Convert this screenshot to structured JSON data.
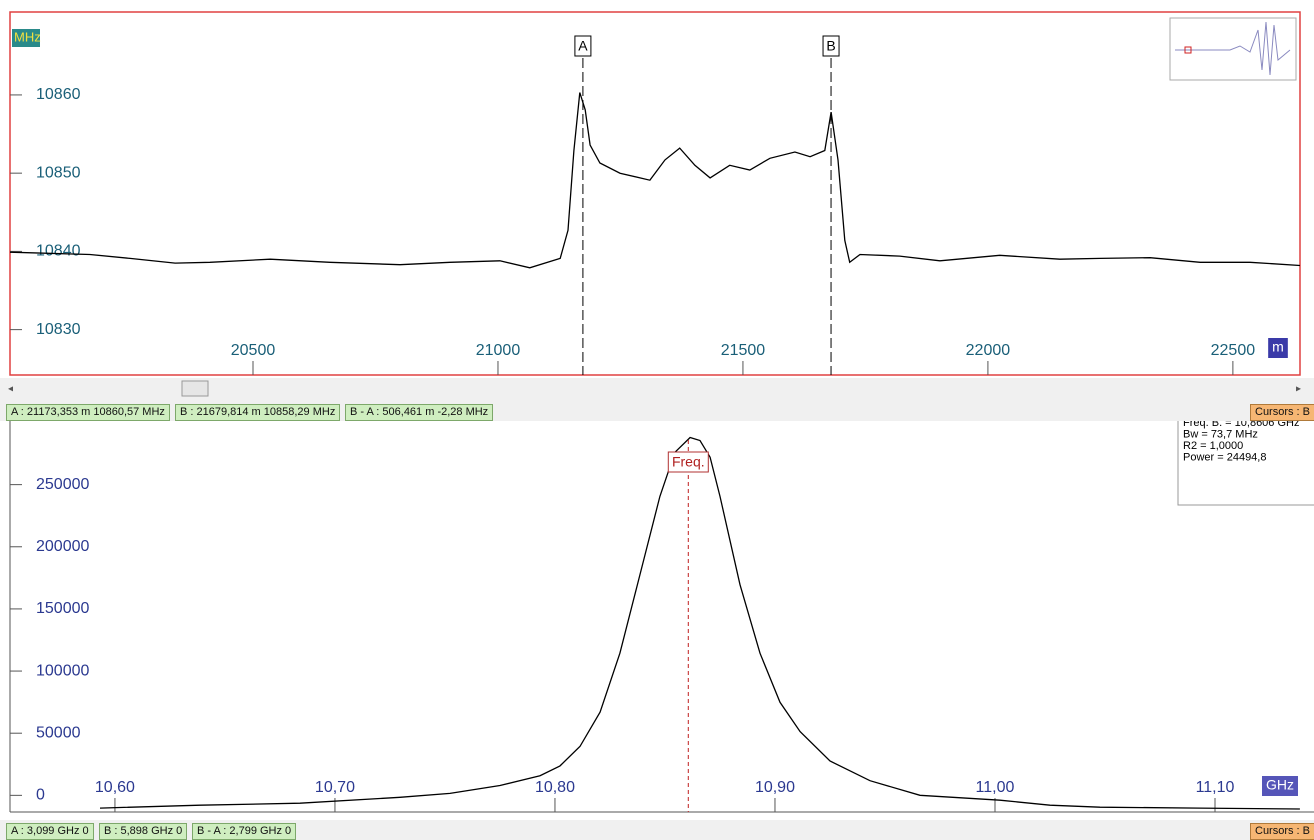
{
  "chart_data": [
    {
      "type": "line",
      "y_label": "MHz",
      "x_label": "m",
      "color": "#000000",
      "xlim": [
        20004,
        22637
      ],
      "ylim": [
        10824.2,
        10870.6
      ],
      "xticks": [
        20500,
        21000,
        21500,
        22000,
        22500
      ],
      "yticks": [
        10830,
        10840,
        10850,
        10860
      ],
      "x": [
        20004,
        20167,
        20249,
        20341,
        20412,
        20535,
        20657,
        20800,
        20902,
        21004,
        21065,
        21127,
        21143,
        21155,
        21167,
        21178,
        21188,
        21208,
        21249,
        21310,
        21341,
        21371,
        21402,
        21433,
        21473,
        21514,
        21555,
        21606,
        21637,
        21667,
        21680,
        21694,
        21708,
        21718,
        21739,
        21820,
        21902,
        22024,
        22147,
        22229,
        22331,
        22433,
        22535,
        22637
      ],
      "values": [
        10839.9,
        10839.6,
        10839.1,
        10838.5,
        10838.6,
        10839.0,
        10838.6,
        10838.3,
        10838.6,
        10838.8,
        10837.9,
        10839.1,
        10842.7,
        10852.9,
        10860.3,
        10858.1,
        10853.6,
        10851.3,
        10850.0,
        10849.1,
        10851.7,
        10853.2,
        10851.0,
        10849.4,
        10851.0,
        10850.4,
        10851.9,
        10852.7,
        10852.1,
        10852.9,
        10857.8,
        10851.7,
        10841.4,
        10838.6,
        10839.6,
        10839.4,
        10838.8,
        10839.5,
        10839.0,
        10839.1,
        10839.2,
        10838.6,
        10838.6,
        10838.2
      ],
      "cursors": [
        {
          "label": "A",
          "x": 21173.353
        },
        {
          "label": "B",
          "x": 21679.814
        }
      ],
      "status": [
        "A : 21173,353 m  10860,57 MHz",
        "B : 21679,814 m  10858,29 MHz",
        "B - A : 506,461 m  -2,28 MHz"
      ],
      "status_right": "Cursors : B"
    },
    {
      "type": "line",
      "x_label": "GHz",
      "color": "#000000",
      "xlim": [
        10.5523,
        11.145
      ],
      "ylim": [
        -13400,
        302000
      ],
      "xticks": [
        {
          "value": 10.6,
          "label": "10,60"
        },
        {
          "value": 10.7,
          "label": "10,70"
        },
        {
          "value": 10.8,
          "label": "10,80"
        },
        {
          "value": 10.9,
          "label": "10,90"
        },
        {
          "value": 11.0,
          "label": "11,00"
        },
        {
          "value": 11.1,
          "label": "11,10"
        }
      ],
      "yticks": [
        0,
        50000,
        100000,
        150000,
        200000,
        250000
      ],
      "x": [
        10.5932,
        10.6386,
        10.6841,
        10.7295,
        10.7523,
        10.775,
        10.7932,
        10.8023,
        10.8114,
        10.8205,
        10.8295,
        10.8386,
        10.8477,
        10.8545,
        10.8614,
        10.8659,
        10.8705,
        10.875,
        10.8841,
        10.8932,
        10.9023,
        10.9114,
        10.925,
        10.9432,
        10.9659,
        11.0023,
        11.025,
        11.0477,
        11.0932,
        11.1386
      ],
      "values": [
        -10300,
        -7900,
        -6300,
        -1600,
        1600,
        7900,
        15800,
        23700,
        39400,
        67000,
        114400,
        177400,
        240500,
        276000,
        287900,
        285500,
        272100,
        240500,
        169500,
        114400,
        74900,
        51300,
        27600,
        11800,
        0,
        -3900,
        -7900,
        -9500,
        -10300,
        -11000
      ],
      "marker": {
        "label": "Freq.",
        "x": 10.8606
      },
      "info": [
        "Freq. B. = 10,8606 GHz",
        "Bw = 73,7 MHz",
        "R2 = 1,0000",
        "Power = 24494,8"
      ],
      "status": [
        "A : 3,099 GHz  0",
        "B : 5,898 GHz  0",
        "B - A : 2,799 GHz  0"
      ],
      "status_right": "Cursors : B"
    }
  ]
}
